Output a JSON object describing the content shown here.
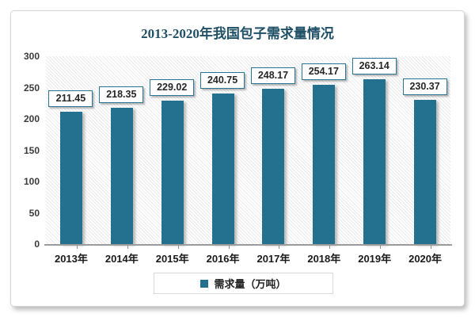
{
  "chart_data": {
    "type": "bar",
    "title": "2013-2020年我国包子需求量情况",
    "categories": [
      "2013年",
      "2014年",
      "2015年",
      "2016年",
      "2017年",
      "2018年",
      "2019年",
      "2020年"
    ],
    "series": [
      {
        "name": "需求量（万吨）",
        "values": [
          211.45,
          218.35,
          229.02,
          240.75,
          248.17,
          254.17,
          263.14,
          230.37
        ]
      }
    ],
    "value_labels": [
      "211.45",
      "218.35",
      "229.02",
      "240.75",
      "248.17",
      "254.17",
      "263.14",
      "230.37"
    ],
    "xlabel": "",
    "ylabel": "",
    "ylim": [
      0,
      300
    ],
    "yticks": [
      0,
      50,
      100,
      150,
      200,
      250,
      300
    ],
    "grid": false,
    "legend_position": "bottom",
    "data_labels_boxed": true,
    "colors": {
      "bar": "#23708f",
      "title": "#1f5066",
      "label_box_border": "#2a7697",
      "axis_line": "#9b9b9b",
      "legend_border": "#d9d9d9",
      "plot_hatch": "#e9e9e9"
    }
  },
  "legend": {
    "label": "需求量（万吨）"
  }
}
